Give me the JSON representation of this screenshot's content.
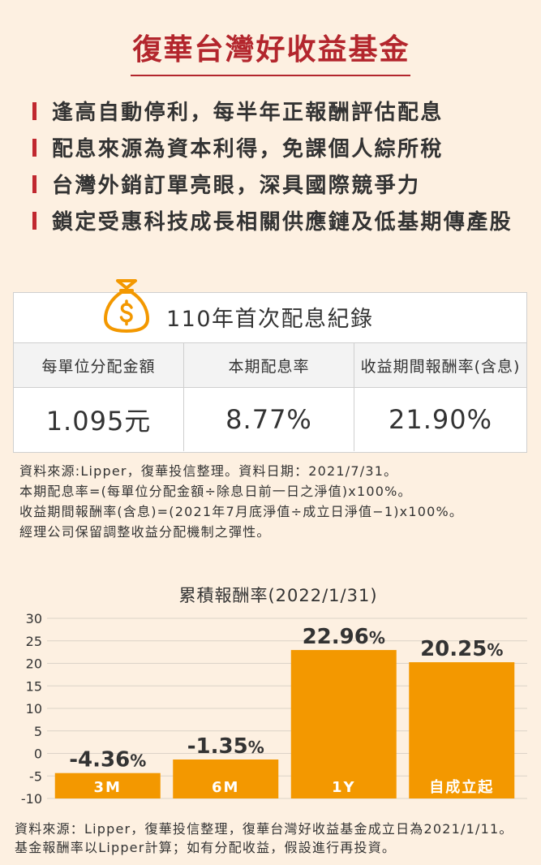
{
  "title": "復華台灣好收益基金",
  "features": [
    "逢高自動停利，每半年正報酬評估配息",
    "配息來源為資本利得，免課個人綜所稅",
    "台灣外銷訂單亮眼，深具國際競爭力",
    "鎖定受惠科技成長相關供應鏈及低基期傳產股"
  ],
  "dividend_table": {
    "icon": "money-bag-icon",
    "title": "110年首次配息紀錄",
    "headers": [
      "每單位分配金額",
      "本期配息率",
      "收益期間報酬率(含息)"
    ],
    "values": [
      "1.095元",
      "8.77%",
      "21.90%"
    ]
  },
  "notes": [
    "資料來源:Lipper，復華投信整理。資料日期：2021/7/31。",
    "本期配息率=(每單位分配金額÷除息日前一日之淨值)x100%。",
    "收益期間報酬率(含息)=(2021年7月底淨值÷成立日淨值−1)x100%。",
    "經理公司保留調整收益分配機制之彈性。"
  ],
  "chart_data": {
    "type": "bar",
    "title": "累積報酬率(2022/1/31)",
    "categories": [
      "3M",
      "6M",
      "1Y",
      "自成立起"
    ],
    "values": [
      -4.36,
      -1.35,
      22.96,
      20.25
    ],
    "value_suffix": "%",
    "yticks": [
      30,
      25,
      20,
      15,
      10,
      5,
      0,
      -5,
      -10
    ],
    "ylim": [
      -10,
      30
    ],
    "grid": true,
    "bar_color": "#f39800"
  },
  "footer": [
    "資料來源：Lipper，復華投信整理，復華台灣好收益基金成立日為2021/1/11。",
    "基金報酬率以Lipper計算；如有分配收益，假設進行再投資。"
  ],
  "colors": {
    "background": "#fdf0e1",
    "title": "#b3262d",
    "bullet": "#c0282f",
    "accent_orange": "#f39800"
  }
}
